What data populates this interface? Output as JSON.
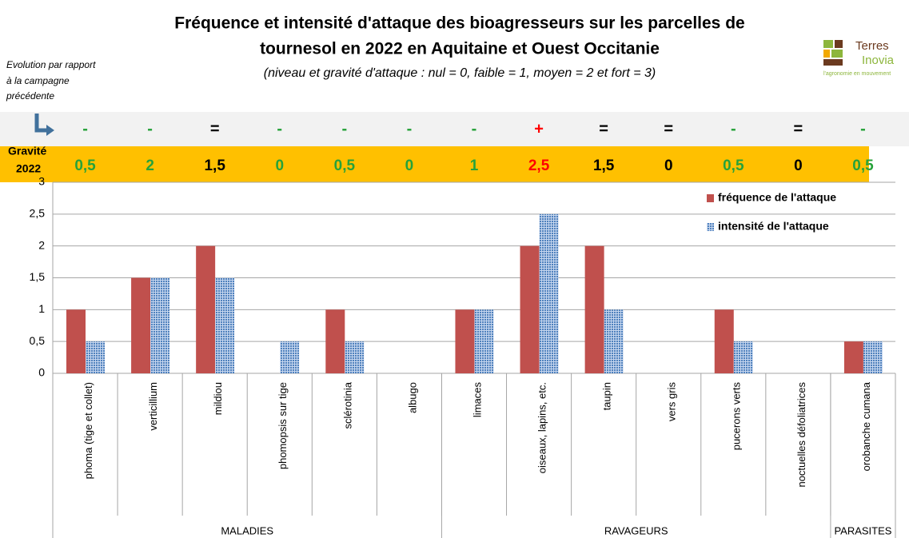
{
  "chart_data": {
    "type": "bar",
    "title": [
      "Fréquence et intensité d'attaque des bioagresseurs sur les parcelles de",
      "tournesol en 2022 en Aquitaine et Ouest Occitanie"
    ],
    "subtitle": "(niveau et gravité d'attaque  : nul = 0, faible = 1, moyen = 2 et fort = 3)",
    "evolution_note": [
      "Evolution par rapport",
      "à la campagne",
      "précédente"
    ],
    "gravite_label": [
      "Gravité",
      "2022"
    ],
    "logo": {
      "name": [
        "Terres",
        "Inovia"
      ],
      "tagline": "l'agronomie en mouvement"
    },
    "categories": [
      "phoma (tige et collet)",
      "verticillium",
      "mildiou",
      "phomopsis sur tige",
      "sclérotinia",
      "albugo",
      "limaces",
      "oiseaux, lapins, etc.",
      "taupin",
      "vers gris",
      "pucerons verts",
      "noctuelles défoliatrices",
      "orobanche cumana"
    ],
    "groups": [
      {
        "name": "MALADIES",
        "count": 6
      },
      {
        "name": "RAVAGEURS",
        "count": 6
      },
      {
        "name": "PARASITES",
        "count": 1
      }
    ],
    "series": [
      {
        "name": "fréquence de l'attaque",
        "color": "#c0504d",
        "values": [
          1,
          1.5,
          2,
          0,
          1,
          0,
          1,
          2,
          2,
          0,
          1,
          0,
          0.5
        ]
      },
      {
        "name": "intensité de l'attaque",
        "color": "#4f81bd",
        "pattern": "dots",
        "values": [
          0.5,
          1.5,
          1.5,
          0.5,
          0.5,
          0,
          1,
          2.5,
          1,
          0,
          0.5,
          0,
          0.5
        ]
      }
    ],
    "evolution": [
      "-",
      "-",
      "=",
      "-",
      "-",
      "-",
      "-",
      "+",
      "=",
      "=",
      "-",
      "=",
      "-"
    ],
    "symbol_colors": {
      "-": "#27a23a",
      "=": "#000000",
      "+": "#ff0000"
    },
    "gravite": {
      "values": [
        0.5,
        2,
        1.5,
        0,
        0.5,
        0,
        1,
        2.5,
        1.5,
        0,
        0.5,
        0,
        0.5
      ],
      "value_labels": [
        "0,5",
        "2",
        "1,5",
        "0",
        "0,5",
        "0",
        "1",
        "2,5",
        "1,5",
        "0",
        "0,5",
        "0",
        "0,5"
      ]
    },
    "ylim": [
      0,
      3
    ],
    "yticks": [
      0,
      {
        "value": 0.5,
        "label": "0,5"
      },
      1,
      {
        "value": 1.5,
        "label": "1,5"
      },
      2,
      {
        "value": 2.5,
        "label": "2,5"
      },
      3
    ],
    "grid": true,
    "legend_position": "top-right"
  }
}
